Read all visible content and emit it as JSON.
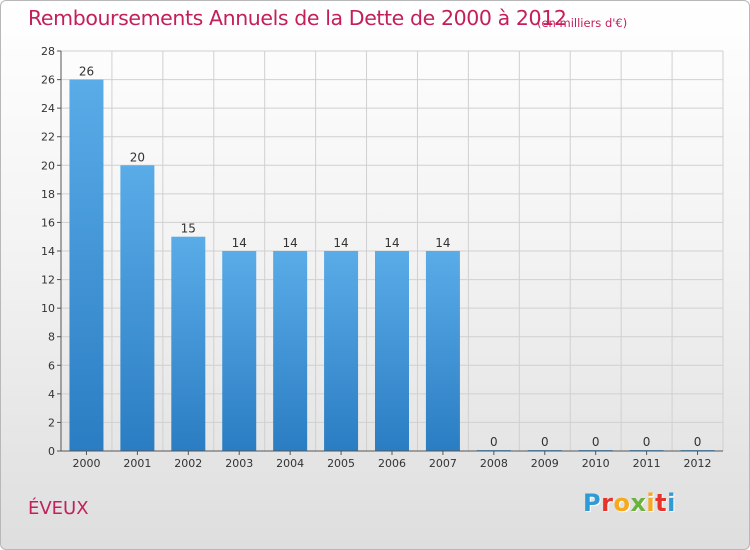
{
  "header": {
    "title": "Remboursements Annuels de la Dette de 2000 à 2012",
    "unit": "(en milliers d'€)"
  },
  "footer": {
    "commune": "ÉVEUX",
    "logo_text": "Proxiti",
    "logo_colors": [
      "#2e9bd6",
      "#e8332a",
      "#f7a81b",
      "#6ab33a",
      "#f7a81b",
      "#e8332a",
      "#2e9bd6"
    ]
  },
  "colors": {
    "title": "#c41f5a",
    "bar_light": "#5aace8",
    "bar_dark": "#2a7dc2",
    "grid": "#d0d0d0",
    "axis": "#555555"
  },
  "chart_data": {
    "type": "bar",
    "categories": [
      "2000",
      "2001",
      "2002",
      "2003",
      "2004",
      "2005",
      "2006",
      "2007",
      "2008",
      "2009",
      "2010",
      "2011",
      "2012"
    ],
    "values": [
      26,
      20,
      15,
      14,
      14,
      14,
      14,
      14,
      0,
      0,
      0,
      0,
      0
    ],
    "data_labels": [
      "26",
      "20",
      "15",
      "14",
      "14",
      "14",
      "14",
      "14",
      "0",
      "0",
      "0",
      "0",
      "0"
    ],
    "title": "Remboursements Annuels de la Dette de 2000 à 2012",
    "xlabel": "",
    "ylabel": "",
    "ylim": [
      0,
      28
    ],
    "yticks": [
      0,
      2,
      4,
      6,
      8,
      10,
      12,
      14,
      16,
      18,
      20,
      22,
      24,
      26,
      28
    ],
    "grid": true
  }
}
